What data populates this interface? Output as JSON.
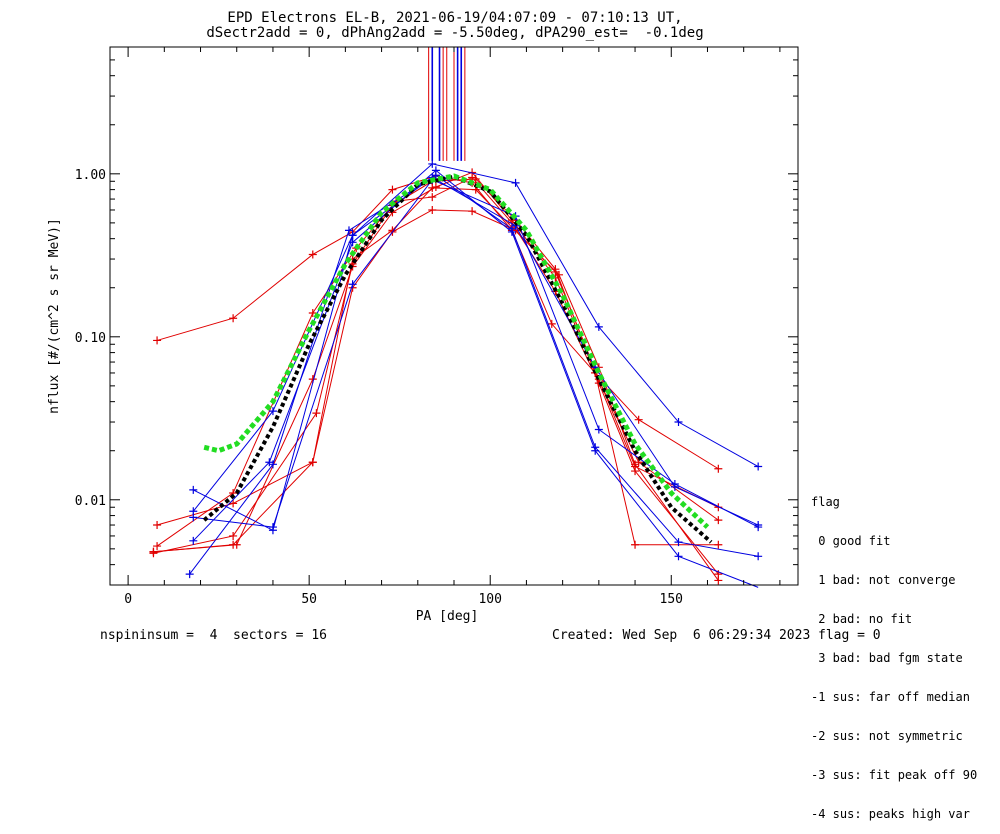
{
  "chart_data": {
    "type": "line",
    "title": "EPD Electrons EL-B, 2021-06-19/04:07:09 - 07:10:13 UT,",
    "subtitle": "dSectr2add = 0, dPhAng2add = -5.50deg, dPA290_est=  -0.1deg",
    "xlabel": "PA [deg]",
    "ylabel": "nflux [#/(cm^2 s sr MeV)]",
    "xlim": [
      -5,
      185
    ],
    "ylim": [
      0.003,
      6
    ],
    "yscale": "log",
    "xticks": [
      0,
      50,
      100,
      150
    ],
    "yticks": [
      {
        "value": 0.01,
        "label": "0.01"
      },
      {
        "value": 0.1,
        "label": "0.10"
      },
      {
        "value": 1,
        "label": "1.00"
      }
    ],
    "colors": {
      "red": "#e00000",
      "blue": "#0000e0",
      "green": "#22dd22",
      "black": "#000000"
    },
    "series": [
      {
        "color": "red",
        "x": [
          8,
          29,
          51,
          62,
          73,
          85,
          95,
          106,
          117,
          129,
          141,
          163
        ],
        "y": [
          0.095,
          0.13,
          0.32,
          0.44,
          0.8,
          0.97,
          0.88,
          0.45,
          0.12,
          0.06,
          0.031,
          0.0155
        ]
      },
      {
        "color": "red",
        "x": [
          8,
          29,
          51,
          62,
          73,
          84,
          95,
          107,
          118,
          130,
          140,
          163
        ],
        "y": [
          0.007,
          0.0095,
          0.017,
          0.2,
          0.44,
          0.6,
          0.59,
          0.45,
          0.25,
          0.055,
          0.016,
          0.009
        ]
      },
      {
        "color": "red",
        "x": [
          7,
          30,
          51,
          62,
          73,
          85,
          95,
          106,
          118,
          129,
          140,
          163
        ],
        "y": [
          0.0048,
          0.0053,
          0.055,
          0.27,
          0.58,
          0.83,
          1.02,
          0.52,
          0.23,
          0.06,
          0.0053,
          0.0053
        ]
      },
      {
        "color": "red",
        "x": [
          8,
          29,
          51,
          63,
          74,
          84,
          95,
          106,
          118,
          130,
          140,
          163
        ],
        "y": [
          0.0052,
          0.011,
          0.14,
          0.35,
          0.68,
          0.72,
          0.95,
          0.5,
          0.19,
          0.052,
          0.015,
          0.0035
        ]
      },
      {
        "color": "red",
        "x": [
          7,
          29,
          52,
          62,
          73,
          84,
          96,
          107,
          118,
          129,
          141,
          163
        ],
        "y": [
          0.0047,
          0.006,
          0.034,
          0.28,
          0.64,
          0.9,
          0.93,
          0.52,
          0.26,
          0.06,
          0.017,
          0.0075
        ]
      },
      {
        "color": "red",
        "x": [
          7,
          29,
          51,
          62,
          73,
          84,
          96,
          106,
          119,
          130,
          140,
          163
        ],
        "y": [
          0.0048,
          0.0053,
          0.017,
          0.3,
          0.45,
          0.82,
          0.8,
          0.47,
          0.24,
          0.065,
          0.0165,
          0.0032
        ]
      },
      {
        "color": "blue",
        "x": [
          18,
          40,
          62,
          84,
          107,
          130,
          152,
          174
        ],
        "y": [
          0.0115,
          0.0065,
          0.42,
          1.15,
          0.88,
          0.115,
          0.03,
          0.016
        ]
      },
      {
        "color": "blue",
        "x": [
          17,
          40,
          61,
          85,
          106,
          129,
          152,
          174
        ],
        "y": [
          0.0035,
          0.0165,
          0.45,
          0.98,
          0.46,
          0.021,
          0.0055,
          0.0045
        ]
      },
      {
        "color": "blue",
        "x": [
          18,
          40,
          62,
          84,
          107,
          130,
          151,
          174
        ],
        "y": [
          0.0078,
          0.0068,
          0.21,
          0.92,
          0.55,
          0.027,
          0.0125,
          0.0068
        ]
      },
      {
        "color": "blue",
        "x": [
          18,
          39,
          62,
          85,
          106,
          129,
          152,
          174
        ],
        "y": [
          0.0056,
          0.017,
          0.38,
          1.05,
          0.44,
          0.02,
          0.0045,
          0.0029
        ]
      },
      {
        "color": "blue",
        "x": [
          18,
          40,
          62,
          84,
          107,
          129,
          151,
          174
        ],
        "y": [
          0.0085,
          0.035,
          0.42,
          0.95,
          0.48,
          0.065,
          0.012,
          0.007
        ]
      }
    ],
    "fits": [
      {
        "name": "black-fit",
        "color": "black",
        "x": [
          21,
          30,
          40,
          50,
          60,
          70,
          80,
          90,
          100,
          110,
          120,
          130,
          140,
          150,
          161
        ],
        "y": [
          0.0075,
          0.011,
          0.028,
          0.09,
          0.24,
          0.52,
          0.86,
          0.96,
          0.78,
          0.42,
          0.16,
          0.055,
          0.02,
          0.009,
          0.0055
        ]
      },
      {
        "name": "green-fit",
        "color": "green",
        "x": [
          21,
          25,
          30,
          40,
          50,
          60,
          70,
          80,
          90,
          100,
          110,
          120,
          130,
          140,
          150,
          160
        ],
        "y": [
          0.021,
          0.02,
          0.022,
          0.04,
          0.11,
          0.28,
          0.58,
          0.88,
          0.97,
          0.8,
          0.45,
          0.18,
          0.06,
          0.022,
          0.011,
          0.0068
        ]
      }
    ],
    "peak_lines": [
      {
        "x": 83,
        "color": "red"
      },
      {
        "x": 84,
        "color": "blue"
      },
      {
        "x": 86,
        "color": "blue"
      },
      {
        "x": 87,
        "color": "red"
      },
      {
        "x": 88,
        "color": "red"
      },
      {
        "x": 90,
        "color": "red"
      },
      {
        "x": 91,
        "color": "blue"
      },
      {
        "x": 92,
        "color": "blue"
      },
      {
        "x": 93,
        "color": "red"
      }
    ]
  },
  "legend": {
    "title": "flag",
    "items": [
      " 0 good fit",
      " 1 bad: not converge",
      " 2 bad: no fit",
      " 3 bad: bad fgm state",
      "-1 sus: far off median",
      "-2 sus: not symmetric",
      "-3 sus: fit peak off 90",
      "-4 sus: peaks high var"
    ]
  },
  "footer": {
    "left": "nspininsum =  4  sectors = 16",
    "created": "Created: Wed Sep  6 06:29:34 2023",
    "flag": "flag = 0"
  }
}
